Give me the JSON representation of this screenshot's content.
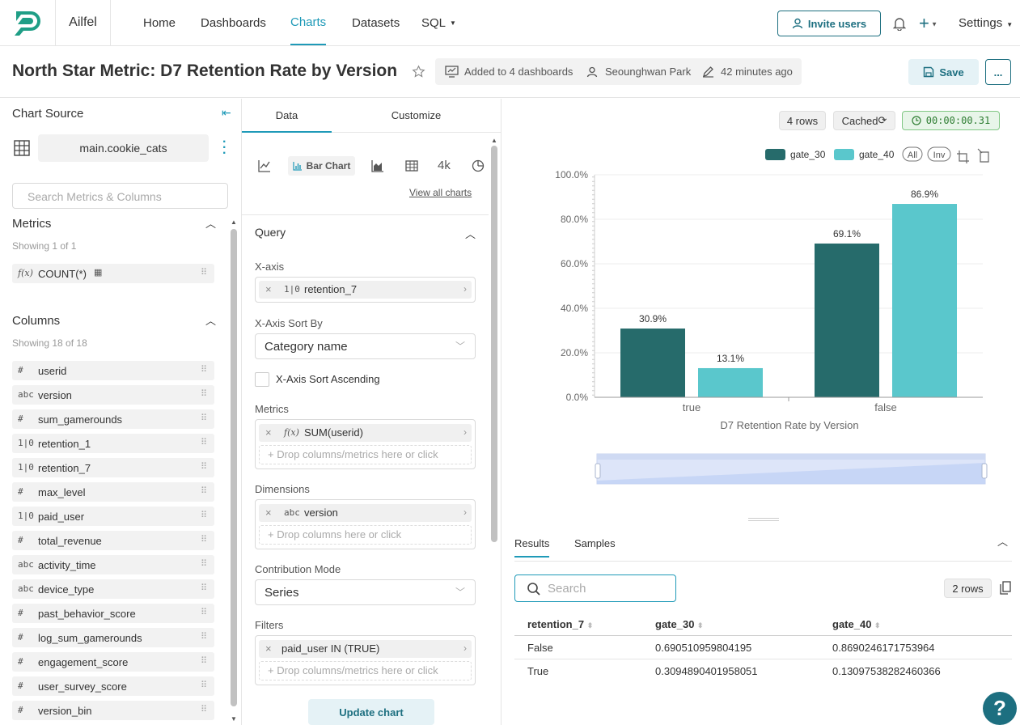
{
  "nav": {
    "brand": "Ailfel",
    "items": [
      "Home",
      "Dashboards",
      "Charts",
      "Datasets",
      "SQL"
    ],
    "invite_label": "Invite users",
    "settings_label": "Settings",
    "accent": "#1f9ab8"
  },
  "header": {
    "title": "North Star Metric: D7 Retention Rate by Version",
    "dashboards": "Added to 4 dashboards",
    "owner": "Seounghwan Park",
    "modified": "42 minutes ago",
    "save_label": "Save",
    "more_label": "..."
  },
  "source": {
    "heading": "Chart Source",
    "dataset": "main.cookie_cats",
    "search_placeholder": "Search Metrics & Columns",
    "metrics_heading": "Metrics",
    "metrics_count": "Showing 1 of 1",
    "metrics": [
      {
        "type": "f(x)",
        "name": "COUNT(*)"
      }
    ],
    "columns_heading": "Columns",
    "columns_count": "Showing 18 of 18",
    "columns": [
      {
        "type": "#",
        "name": "userid"
      },
      {
        "type": "abc",
        "name": "version"
      },
      {
        "type": "#",
        "name": "sum_gamerounds"
      },
      {
        "type": "1|0",
        "name": "retention_1"
      },
      {
        "type": "1|0",
        "name": "retention_7"
      },
      {
        "type": "#",
        "name": "max_level"
      },
      {
        "type": "1|0",
        "name": "paid_user"
      },
      {
        "type": "#",
        "name": "total_revenue"
      },
      {
        "type": "abc",
        "name": "activity_time"
      },
      {
        "type": "abc",
        "name": "device_type"
      },
      {
        "type": "#",
        "name": "past_behavior_score"
      },
      {
        "type": "#",
        "name": "log_sum_gamerounds"
      },
      {
        "type": "#",
        "name": "engagement_score"
      },
      {
        "type": "#",
        "name": "user_survey_score"
      },
      {
        "type": "#",
        "name": "version_bin"
      }
    ]
  },
  "control": {
    "tabs": [
      "Data",
      "Customize"
    ],
    "chart_type": "Bar Chart",
    "big_number": "4k",
    "view_all": "View all charts",
    "query_heading": "Query",
    "xaxis_label": "X-axis",
    "xaxis_type": "1|0",
    "xaxis_value": "retention_7",
    "sortby_label": "X-Axis Sort By",
    "sortby_value": "Category name",
    "ascending_label": "X-Axis Sort Ascending",
    "metrics_label": "Metrics",
    "metric_type": "f(x)",
    "metric_value": "SUM(userid)",
    "drop_metrics": "Drop columns/metrics here or click",
    "dimensions_label": "Dimensions",
    "dimension_type": "abc",
    "dimension_value": "version",
    "drop_columns": "Drop columns here or click",
    "contribution_label": "Contribution Mode",
    "contribution_value": "Series",
    "filters_label": "Filters",
    "filter_value": "paid_user IN (TRUE)",
    "drop_filters": "Drop columns/metrics here or click",
    "update_label": "Update chart"
  },
  "status": {
    "rows": "4 rows",
    "cached": "Cached",
    "timer": "00:00:00.31",
    "timer_color": "#2e7d32"
  },
  "legend_controls": {
    "all": "All",
    "inv": "Inv"
  },
  "chart_data": {
    "type": "bar",
    "categories": [
      "true",
      "false"
    ],
    "series": [
      {
        "name": "gate_30",
        "values": [
          30.9,
          69.1
        ],
        "color": "#266b6b"
      },
      {
        "name": "gate_40",
        "values": [
          13.1,
          86.9
        ],
        "color": "#5ac7cc"
      }
    ],
    "data_labels": [
      [
        "30.9%",
        "69.1%"
      ],
      [
        "13.1%",
        "86.9%"
      ]
    ],
    "yticks": [
      "0.0%",
      "20.0%",
      "40.0%",
      "60.0%",
      "80.0%",
      "100.0%"
    ],
    "ylim": [
      0,
      100
    ],
    "xlabel": "D7 Retention Rate by Version",
    "legend": "top-right",
    "grid": true
  },
  "results": {
    "tabs": [
      "Results",
      "Samples"
    ],
    "search_placeholder": "Search",
    "rows_badge": "2 rows",
    "headers": [
      "retention_7",
      "gate_30",
      "gate_40"
    ],
    "rows": [
      [
        "False",
        "0.690510959804195",
        "0.8690246171753964"
      ],
      [
        "True",
        "0.3094890401958051",
        "0.13097538282460366"
      ]
    ]
  },
  "help_label": "?"
}
